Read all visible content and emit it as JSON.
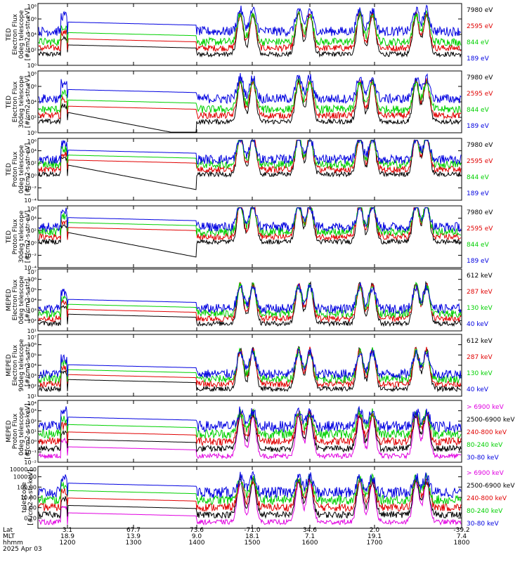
{
  "colors": {
    "black": "#000000",
    "red": "#e00000",
    "green": "#00d000",
    "blue": "#0000e0",
    "magenta": "#e000e0"
  },
  "x_axis": {
    "rows": [
      {
        "label": "Lat",
        "values": [
          "3.1",
          "67.7",
          "73.6",
          "-71.0",
          "34.6",
          "2.0",
          "-39.2"
        ]
      },
      {
        "label": "MLT",
        "values": [
          "18.9",
          "13.9",
          "9.0",
          "18.1",
          "7.1",
          "19.1",
          "7.4"
        ]
      },
      {
        "label": "hhmm",
        "values": [
          "1200",
          "1300",
          "1400",
          "1500",
          "1600",
          "1700",
          "1800"
        ]
      }
    ],
    "time_range": [
      "1200",
      "1800"
    ],
    "date": "2025 Apr 03"
  },
  "chart_data": [
    {
      "type": "line",
      "ylabel": [
        "TED",
        "Electron Flux",
        "0deg telescope",
        "[#/cm2-s-str-eV]"
      ],
      "yscale": "log",
      "ylim": [
        1,
        100000000.0
      ],
      "ticks": [
        {
          "v": 1,
          "label": "10⁰"
        },
        {
          "v": 100,
          "label": "10²"
        },
        {
          "v": 10000.0,
          "label": "10⁴"
        },
        {
          "v": 1000000.0,
          "label": "10⁶"
        },
        {
          "v": 100000000.0,
          "label": "10⁸"
        }
      ],
      "series": [
        {
          "name": "7980 eV",
          "color": "black"
        },
        {
          "name": "2595 eV",
          "color": "red"
        },
        {
          "name": "844 eV",
          "color": "green"
        },
        {
          "name": "189 eV",
          "color": "blue"
        }
      ]
    },
    {
      "type": "line",
      "ylabel": [
        "TED",
        "Electron Flux",
        "30deg telescope",
        "[#/cm2-s-str-eV]"
      ],
      "yscale": "log",
      "ylim": [
        1,
        100000000.0
      ],
      "ticks": [
        {
          "v": 1,
          "label": "10⁰"
        },
        {
          "v": 100,
          "label": "10²"
        },
        {
          "v": 10000.0,
          "label": "10⁴"
        },
        {
          "v": 1000000.0,
          "label": "10⁶"
        },
        {
          "v": 100000000.0,
          "label": "10⁸"
        }
      ],
      "series": [
        {
          "name": "7980 eV",
          "color": "black"
        },
        {
          "name": "2595 eV",
          "color": "red"
        },
        {
          "name": "844 eV",
          "color": "green"
        },
        {
          "name": "189 eV",
          "color": "blue"
        }
      ]
    },
    {
      "type": "line",
      "ylabel": [
        "TED",
        "Proton Flux",
        "0deg telescope",
        "[#/cm2-s-str-eV]"
      ],
      "yscale": "log",
      "ylim": [
        0.0001,
        1000000.0
      ],
      "ticks": [
        {
          "v": 0.0001,
          "label": "10⁻⁴"
        },
        {
          "v": 0.01,
          "label": "10⁻²"
        },
        {
          "v": 1,
          "label": "10⁰"
        },
        {
          "v": 100,
          "label": "10²"
        },
        {
          "v": 10000.0,
          "label": "10⁴"
        },
        {
          "v": 1000000.0,
          "label": "10⁶"
        }
      ],
      "series": [
        {
          "name": "7980 eV",
          "color": "black"
        },
        {
          "name": "2595 eV",
          "color": "red"
        },
        {
          "name": "844 eV",
          "color": "green"
        },
        {
          "name": "189 eV",
          "color": "blue"
        }
      ]
    },
    {
      "type": "line",
      "ylabel": [
        "TED",
        "Proton Flux",
        "30deg telescope",
        "[#/cm2-s-str-eV]"
      ],
      "yscale": "log",
      "ylim": [
        0.0001,
        1000000.0
      ],
      "ticks": [
        {
          "v": 0.0001,
          "label": "10⁻⁴"
        },
        {
          "v": 0.01,
          "label": "10⁻²"
        },
        {
          "v": 1,
          "label": "10⁰"
        },
        {
          "v": 100,
          "label": "10²"
        },
        {
          "v": 10000.0,
          "label": "10⁴"
        },
        {
          "v": 1000000.0,
          "label": "10⁶"
        }
      ],
      "series": [
        {
          "name": "7980 eV",
          "color": "black"
        },
        {
          "name": "2595 eV",
          "color": "red"
        },
        {
          "name": "844 eV",
          "color": "green"
        },
        {
          "name": "189 eV",
          "color": "blue"
        }
      ]
    },
    {
      "type": "line",
      "ylabel": [
        "MEPED",
        "Electron Flux",
        "0deg telescope",
        "[#/cm2-s-str]"
      ],
      "yscale": "log",
      "ylim": [
        10,
        10000000.0
      ],
      "ticks": [
        {
          "v": 10,
          "label": "10¹"
        },
        {
          "v": 100,
          "label": "10²"
        },
        {
          "v": 1000,
          "label": "10³"
        },
        {
          "v": 10000.0,
          "label": "10⁴"
        },
        {
          "v": 100000.0,
          "label": "10⁵"
        },
        {
          "v": 1000000.0,
          "label": "10⁶"
        },
        {
          "v": 10000000.0,
          "label": "10⁷"
        }
      ],
      "series": [
        {
          "name": "612 keV",
          "color": "black"
        },
        {
          "name": "287 keV",
          "color": "red"
        },
        {
          "name": "130 keV",
          "color": "green"
        },
        {
          "name": "40 keV",
          "color": "blue"
        }
      ]
    },
    {
      "type": "line",
      "ylabel": [
        "MEPED",
        "Electron Flux",
        "90deg telescope",
        "[#/cm2-s-str]"
      ],
      "yscale": "log",
      "ylim": [
        10,
        10000000.0
      ],
      "ticks": [
        {
          "v": 10,
          "label": "10¹"
        },
        {
          "v": 100,
          "label": "10²"
        },
        {
          "v": 1000,
          "label": "10³"
        },
        {
          "v": 10000.0,
          "label": "10⁴"
        },
        {
          "v": 100000.0,
          "label": "10⁵"
        },
        {
          "v": 1000000.0,
          "label": "10⁶"
        },
        {
          "v": 10000000.0,
          "label": "10⁷"
        }
      ],
      "series": [
        {
          "name": "612 keV",
          "color": "black"
        },
        {
          "name": "287 keV",
          "color": "red"
        },
        {
          "name": "130 keV",
          "color": "green"
        },
        {
          "name": "40 keV",
          "color": "blue"
        }
      ]
    },
    {
      "type": "line",
      "ylabel": [
        "MEPED",
        "Proton Flux",
        "0deg telescope",
        "[#/cm2-s-str-keV]"
      ],
      "yscale": "log",
      "ylim": [
        0.01,
        10000
      ],
      "ticks": [
        {
          "v": 0.01,
          "label": "10⁻²"
        },
        {
          "v": 0.1,
          "label": "10⁻¹"
        },
        {
          "v": 1,
          "label": "10⁰"
        },
        {
          "v": 10,
          "label": "10¹"
        },
        {
          "v": 100,
          "label": "10²"
        },
        {
          "v": 1000,
          "label": "10³"
        },
        {
          "v": 10000,
          "label": "10⁴"
        }
      ],
      "series": [
        {
          "name": "> 6900 keV",
          "color": "magenta"
        },
        {
          "name": "2500-6900 keV",
          "color": "black"
        },
        {
          "name": "240-800 keV",
          "color": "red"
        },
        {
          "name": "80-240 keV",
          "color": "green"
        },
        {
          "name": "30-80 keV",
          "color": "blue"
        }
      ]
    },
    {
      "type": "line",
      "ylabel": [
        "",
        "",
        "telescope",
        "[#/cm2-s-str-keV]"
      ],
      "yscale": "log",
      "ylim": [
        0.01,
        10000
      ],
      "ticks": [
        {
          "v": 0.1,
          "label": "0.10"
        },
        {
          "v": 1,
          "label": "1.00"
        },
        {
          "v": 10,
          "label": "10.00"
        },
        {
          "v": 100,
          "label": "100.00"
        },
        {
          "v": 1000,
          "label": "1000.00"
        },
        {
          "v": 10000,
          "label": "10000.00"
        }
      ],
      "series": [
        {
          "name": "> 6900 keV",
          "color": "magenta"
        },
        {
          "name": "2500-6900 keV",
          "color": "black"
        },
        {
          "name": "240-800 keV",
          "color": "red"
        },
        {
          "name": "80-240 keV",
          "color": "green"
        },
        {
          "name": "30-80 keV",
          "color": "blue"
        }
      ]
    }
  ]
}
